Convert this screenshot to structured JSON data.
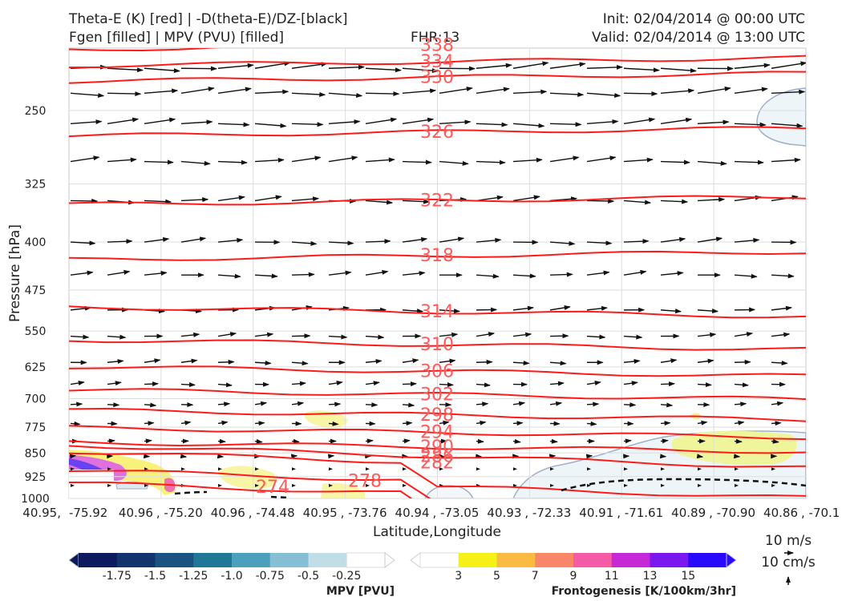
{
  "header": {
    "title_line1": "Theta-E (K) [red] | -D(theta-E)/DZ-[black]",
    "title_line2": "Fgen [filled] | MPV (PVU) [filled]",
    "fhr": "FHR:13",
    "init": "Init: 02/04/2014 @ 00:00 UTC",
    "valid": "Valid: 02/04/2014 @ 13:00 UTC"
  },
  "chart_data": {
    "type": "cross-section",
    "xlabel": "Latitude,Longitude",
    "ylabel": "Pressure [hPa]",
    "x_ticks": [
      "40.95, -75.92",
      "40.96, -75.20",
      "40.96, -74.48",
      "40.95, -73.76",
      "40.94, -73.05",
      "40.93, -72.33",
      "40.91, -71.61",
      "40.89, -70.90",
      "40.86, -70.1"
    ],
    "x_first_label": "40.95,",
    "y_ticks": [
      250,
      325,
      400,
      475,
      550,
      625,
      700,
      775,
      850,
      925,
      1000
    ],
    "ylim": [
      1000,
      200
    ],
    "y_scale": "log",
    "grid": true,
    "theta_e_contours": [
      {
        "value": 338,
        "pressure": 198
      },
      {
        "value": 334,
        "pressure": 210
      },
      {
        "value": 330,
        "pressure": 222
      },
      {
        "value": 326,
        "pressure": 270
      },
      {
        "value": 322,
        "pressure": 345
      },
      {
        "value": 318,
        "pressure": 420
      },
      {
        "value": 314,
        "pressure": 513
      },
      {
        "value": 310,
        "pressure": 577
      },
      {
        "value": 306,
        "pressure": 635
      },
      {
        "value": 302,
        "pressure": 690
      },
      {
        "value": 298,
        "pressure": 742
      },
      {
        "value": 294,
        "pressure": 790
      },
      {
        "value": 290,
        "pressure": 832
      },
      {
        "value": 286,
        "pressure": 860
      },
      {
        "value": 282,
        "pressure": 880
      },
      {
        "value": 278,
        "pressure": 940
      },
      {
        "value": 274,
        "pressure": 985
      }
    ],
    "wind_reference": {
      "horizontal": "10 m/s",
      "vertical": "10 cm/s"
    },
    "colorbars": [
      {
        "label": "MPV [PVU]",
        "tick_labels": [
          "-1.75",
          "-1.5",
          "-1.25",
          "-1.0",
          "-0.75",
          "-0.5",
          "-0.25"
        ],
        "colors": [
          "#0d1b5e",
          "#12346e",
          "#1a5282",
          "#1f7896",
          "#4ba0bd",
          "#86bfd4",
          "#c1dde6",
          "#ffffff"
        ]
      },
      {
        "label": "Frontogenesis [K/100km/3hr]",
        "tick_labels": [
          "3",
          "5",
          "7",
          "9",
          "11",
          "13",
          "15"
        ],
        "colors": [
          "#ffffff",
          "#f5f016",
          "#fbbb43",
          "#f8876a",
          "#f55aa6",
          "#c62ad6",
          "#7a18ee",
          "#2a0aff"
        ]
      }
    ]
  }
}
